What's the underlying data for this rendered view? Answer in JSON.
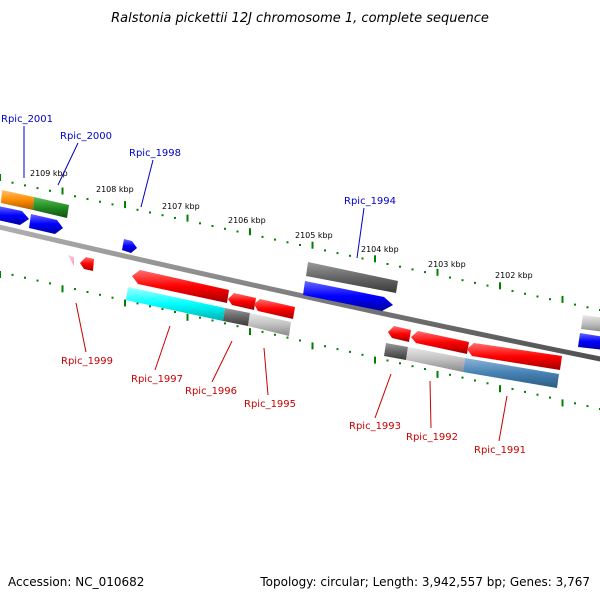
{
  "title": "Ralstonia pickettii 12J chromosome 1, complete sequence",
  "footer": {
    "accession": "Accession: NC_010682",
    "summary": "Topology: circular; Length: 3,942,557 bp; Genes: 3,767"
  },
  "kbp_labels": [
    "2109 kbp",
    "2108 kbp",
    "2107 kbp",
    "2106 kbp",
    "2105 kbp",
    "2104 kbp",
    "2103 kbp",
    "2102 kbp"
  ],
  "top_gene_labels": [
    "Rpic_2001",
    "Rpic_2000",
    "Rpic_1998",
    "Rpic_1994"
  ],
  "bottom_gene_labels": [
    "Rpic_1999",
    "Rpic_1997",
    "Rpic_1996",
    "Rpic_1995",
    "Rpic_1993",
    "Rpic_1992",
    "Rpic_1991"
  ],
  "colors": {
    "backbone": "#808080",
    "forward_strand": "#0000ff",
    "reverse_strand": "#ff0000",
    "highlight_cyan": "#00ffff",
    "highlight_steelblue": "#4682b4",
    "highlight_orange": "#ff8c00",
    "highlight_green": "#228b22",
    "tick": "#008000"
  }
}
